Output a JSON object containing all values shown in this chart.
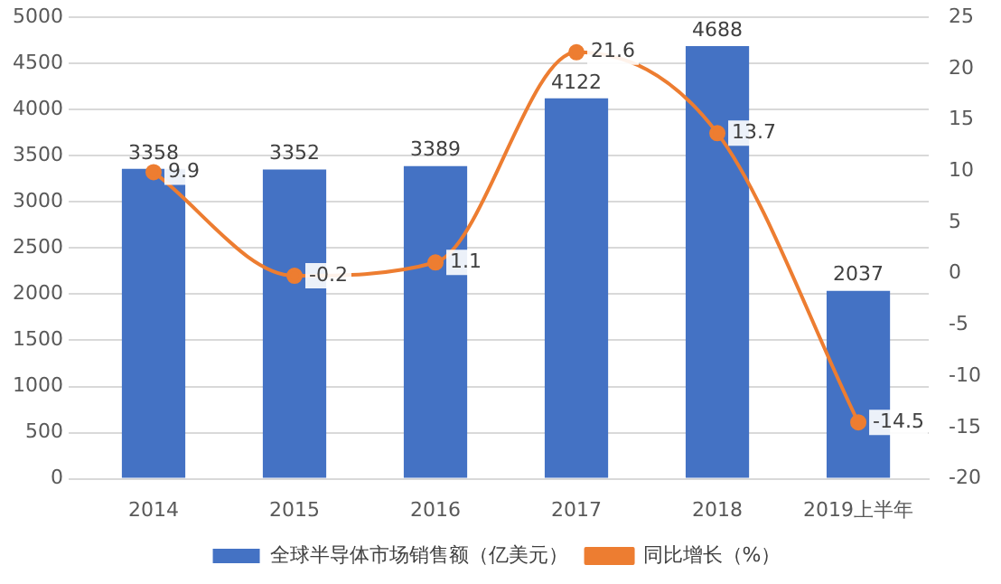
{
  "chart_data": {
    "type": "bar",
    "categories": [
      "2014",
      "2015",
      "2016",
      "2017",
      "2018",
      "2019上半年"
    ],
    "series": [
      {
        "name": "全球半导体市场销售额（亿美元）",
        "color": "#4472c4",
        "values": [
          3358,
          3352,
          3389,
          4122,
          4688,
          2037
        ]
      },
      {
        "name": "同比增长（%）",
        "type": "line",
        "axis": "y2",
        "color": "#ed7d31",
        "marker": "circle",
        "values": [
          9.9,
          -0.2,
          1.1,
          21.6,
          13.7,
          -14.5
        ]
      }
    ],
    "ylim": [
      0,
      5000
    ],
    "yticks": [
      0,
      500,
      1000,
      1500,
      2000,
      2500,
      3000,
      3500,
      4000,
      4500,
      5000
    ],
    "y2lim": [
      -20,
      25
    ],
    "y2ticks": [
      -20,
      -15,
      -10,
      -5,
      0,
      5,
      10,
      15,
      20,
      25
    ],
    "grid": "y",
    "legend": "bottom",
    "data_labels": true
  }
}
